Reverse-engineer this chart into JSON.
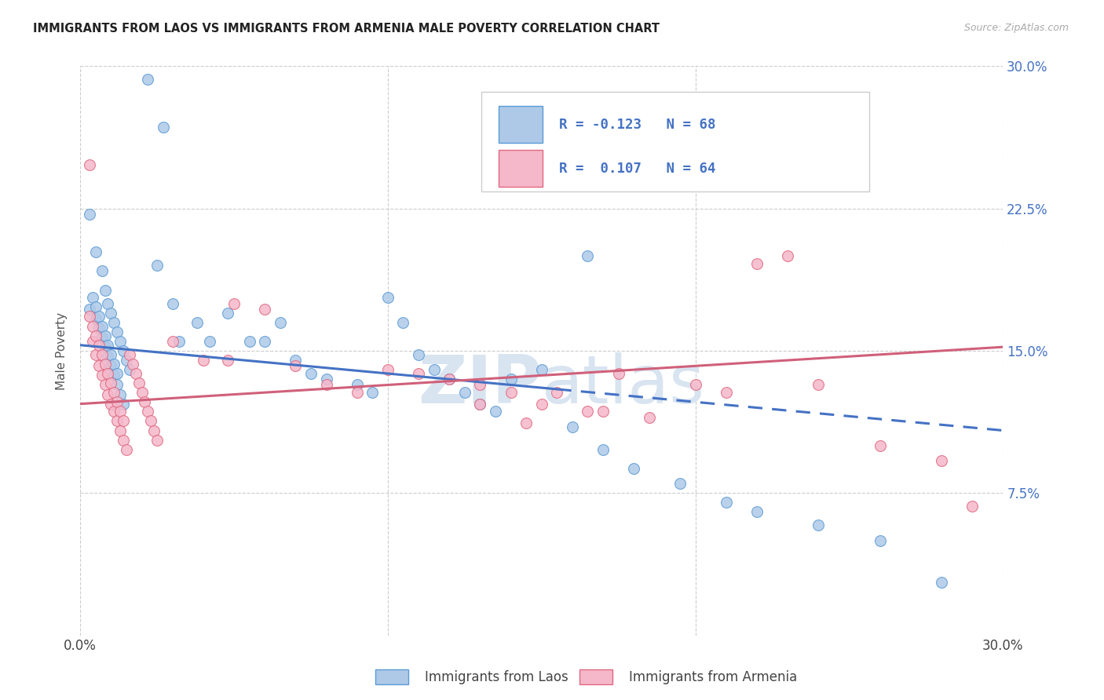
{
  "title": "IMMIGRANTS FROM LAOS VS IMMIGRANTS FROM ARMENIA MALE POVERTY CORRELATION CHART",
  "source": "Source: ZipAtlas.com",
  "ylabel": "Male Poverty",
  "laos_color": "#aec9e8",
  "armenia_color": "#f5b8ca",
  "laos_edge": "#5b9bd5",
  "armenia_edge": "#e06880",
  "laos_line": "#4472c4",
  "armenia_line": "#d0607a",
  "right_tick_color": "#4472c4",
  "watermark_color": "#d8e4f0",
  "xmin": 0.0,
  "xmax": 0.3,
  "ymin": 0.0,
  "ymax": 0.3,
  "laos_R": "-0.123",
  "laos_N": "68",
  "armenia_R": "0.107",
  "armenia_N": "64",
  "laos_trend_x0": 0.0,
  "laos_trend_x_solid_end": 0.155,
  "laos_trend_x1": 0.3,
  "laos_trend_y0": 0.153,
  "laos_trend_y1": 0.108,
  "armenia_trend_x0": 0.0,
  "armenia_trend_x1": 0.3,
  "armenia_trend_y0": 0.122,
  "armenia_trend_y1": 0.152,
  "right_yticks": [
    0.075,
    0.15,
    0.225,
    0.3
  ],
  "right_yticklabels": [
    "7.5%",
    "15.0%",
    "22.5%",
    "30.0%"
  ],
  "bottom_label_laos": "Immigrants from Laos",
  "bottom_label_armenia": "Immigrants from Armenia",
  "laos_x": [
    0.022,
    0.027,
    0.003,
    0.005,
    0.007,
    0.008,
    0.009,
    0.01,
    0.011,
    0.012,
    0.013,
    0.014,
    0.015,
    0.016,
    0.003,
    0.005,
    0.006,
    0.007,
    0.008,
    0.009,
    0.01,
    0.011,
    0.012,
    0.013,
    0.014,
    0.004,
    0.005,
    0.006,
    0.007,
    0.008,
    0.009,
    0.01,
    0.011,
    0.012,
    0.025,
    0.03,
    0.032,
    0.038,
    0.042,
    0.048,
    0.055,
    0.06,
    0.065,
    0.07,
    0.075,
    0.08,
    0.09,
    0.095,
    0.1,
    0.105,
    0.11,
    0.115,
    0.12,
    0.125,
    0.13,
    0.14,
    0.15,
    0.16,
    0.17,
    0.18,
    0.195,
    0.21,
    0.22,
    0.24,
    0.26,
    0.28,
    0.165,
    0.135
  ],
  "laos_y": [
    0.293,
    0.268,
    0.222,
    0.202,
    0.192,
    0.182,
    0.175,
    0.17,
    0.165,
    0.16,
    0.155,
    0.15,
    0.145,
    0.14,
    0.172,
    0.167,
    0.162,
    0.157,
    0.152,
    0.147,
    0.142,
    0.137,
    0.132,
    0.127,
    0.122,
    0.178,
    0.173,
    0.168,
    0.163,
    0.158,
    0.153,
    0.148,
    0.143,
    0.138,
    0.195,
    0.175,
    0.155,
    0.165,
    0.155,
    0.17,
    0.155,
    0.155,
    0.165,
    0.145,
    0.138,
    0.135,
    0.132,
    0.128,
    0.178,
    0.165,
    0.148,
    0.14,
    0.135,
    0.128,
    0.122,
    0.135,
    0.14,
    0.11,
    0.098,
    0.088,
    0.08,
    0.07,
    0.065,
    0.058,
    0.05,
    0.028,
    0.2,
    0.118
  ],
  "armenia_x": [
    0.003,
    0.004,
    0.005,
    0.006,
    0.007,
    0.008,
    0.009,
    0.01,
    0.011,
    0.012,
    0.013,
    0.014,
    0.015,
    0.016,
    0.017,
    0.018,
    0.019,
    0.02,
    0.021,
    0.022,
    0.023,
    0.024,
    0.025,
    0.003,
    0.004,
    0.005,
    0.006,
    0.007,
    0.008,
    0.009,
    0.01,
    0.011,
    0.012,
    0.013,
    0.014,
    0.03,
    0.04,
    0.05,
    0.06,
    0.07,
    0.08,
    0.09,
    0.1,
    0.11,
    0.12,
    0.13,
    0.14,
    0.15,
    0.155,
    0.17,
    0.175,
    0.185,
    0.2,
    0.21,
    0.22,
    0.23,
    0.24,
    0.26,
    0.28,
    0.29,
    0.13,
    0.145,
    0.165,
    0.048
  ],
  "armenia_y": [
    0.248,
    0.155,
    0.148,
    0.142,
    0.137,
    0.132,
    0.127,
    0.122,
    0.118,
    0.113,
    0.108,
    0.103,
    0.098,
    0.148,
    0.143,
    0.138,
    0.133,
    0.128,
    0.123,
    0.118,
    0.113,
    0.108,
    0.103,
    0.168,
    0.163,
    0.158,
    0.153,
    0.148,
    0.143,
    0.138,
    0.133,
    0.128,
    0.123,
    0.118,
    0.113,
    0.155,
    0.145,
    0.175,
    0.172,
    0.142,
    0.132,
    0.128,
    0.14,
    0.138,
    0.135,
    0.132,
    0.128,
    0.122,
    0.128,
    0.118,
    0.138,
    0.115,
    0.132,
    0.128,
    0.196,
    0.2,
    0.132,
    0.1,
    0.092,
    0.068,
    0.122,
    0.112,
    0.118,
    0.145
  ]
}
